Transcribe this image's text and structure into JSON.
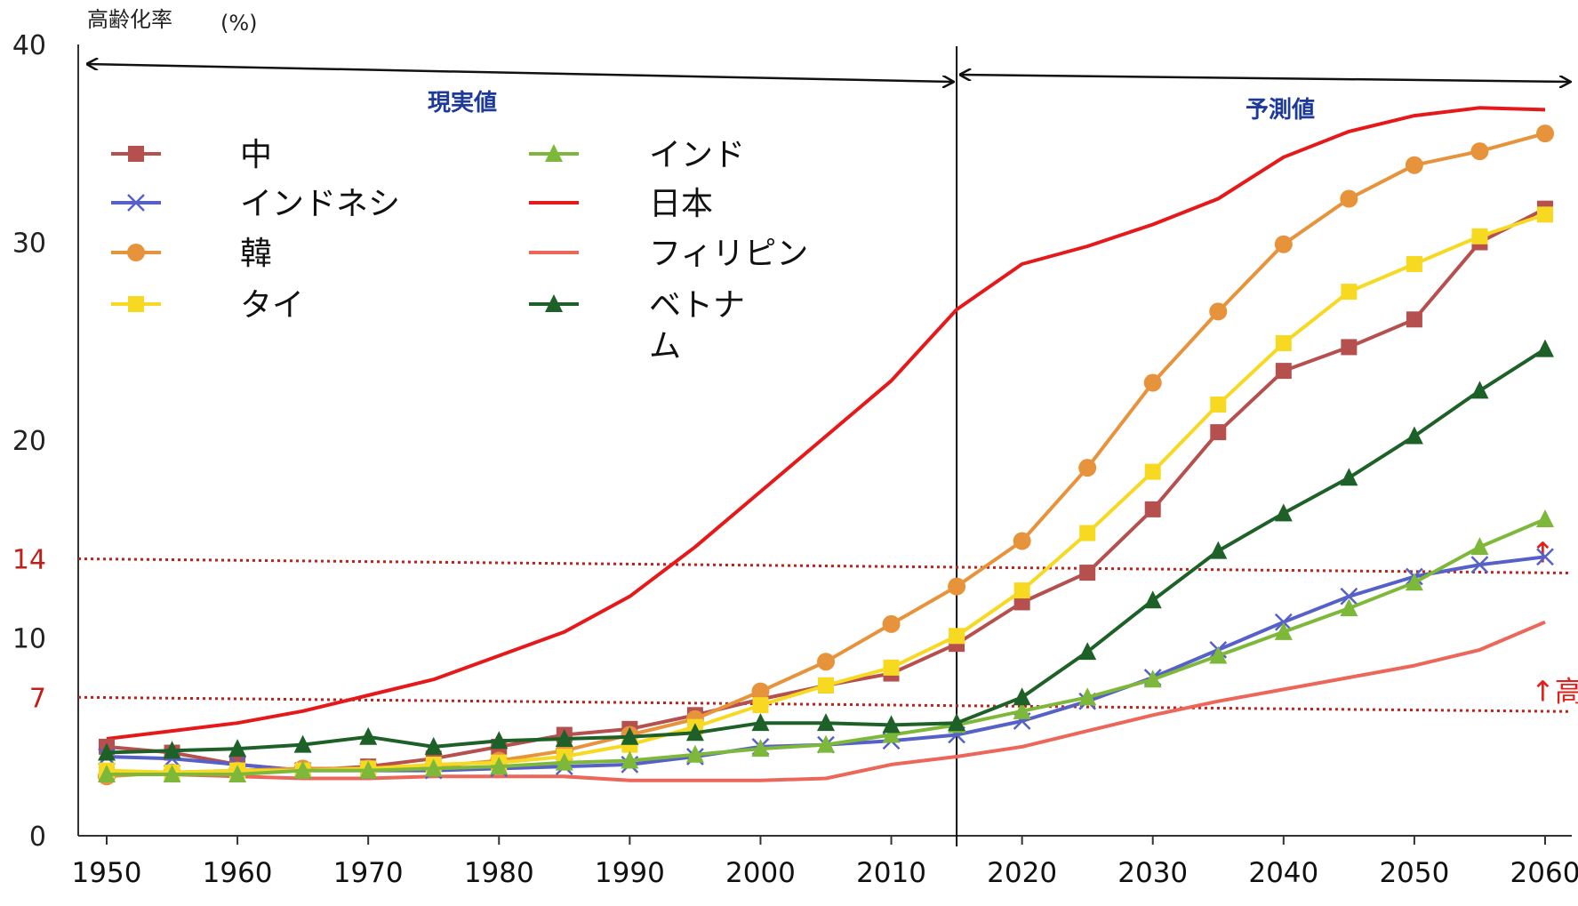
{
  "chart_data": {
    "type": "line",
    "ylabel": "高齢化率",
    "yunit": "(%)",
    "ylim": [
      0,
      40
    ],
    "xlim": [
      1950,
      2060
    ],
    "y_ticks": [
      "0",
      "10",
      "20",
      "30",
      "40"
    ],
    "x_ticks": [
      "1950",
      "1960",
      "1970",
      "1980",
      "1990",
      "2000",
      "2010",
      "2020",
      "2030",
      "2040",
      "2050",
      "2060"
    ],
    "ref_lines": [
      {
        "value": 14,
        "label": "14",
        "note": "↑"
      },
      {
        "value": 7,
        "label": "7",
        "note": "↑高"
      }
    ],
    "divider_year": 2015,
    "periods": {
      "actual": "現実値",
      "projected": "予測値"
    },
    "x": [
      1950,
      1955,
      1960,
      1965,
      1970,
      1975,
      1980,
      1985,
      1990,
      1995,
      2000,
      2005,
      2010,
      2015,
      2020,
      2025,
      2030,
      2035,
      2040,
      2045,
      2050,
      2055,
      2060
    ],
    "series": [
      {
        "name": "中",
        "color": "#b5504e",
        "marker": "square",
        "values": [
          4.5,
          4.2,
          3.6,
          3.3,
          3.5,
          3.9,
          4.5,
          5.1,
          5.4,
          6.1,
          6.9,
          7.6,
          8.2,
          9.7,
          11.8,
          13.3,
          16.5,
          20.4,
          23.5,
          24.7,
          26.1,
          30.0,
          31.7
        ]
      },
      {
        "name": "インドネシ",
        "color": "#5560c8",
        "marker": "cross",
        "values": [
          4.0,
          3.9,
          3.6,
          3.3,
          3.3,
          3.3,
          3.4,
          3.5,
          3.6,
          4.0,
          4.5,
          4.6,
          4.8,
          5.1,
          5.8,
          6.8,
          8.0,
          9.4,
          10.8,
          12.1,
          13.1,
          13.7,
          14.1
        ]
      },
      {
        "name": "韓",
        "color": "#e7933c",
        "marker": "circle",
        "values": [
          3.0,
          3.2,
          3.3,
          3.4,
          3.4,
          3.5,
          3.8,
          4.3,
          5.1,
          5.9,
          7.3,
          8.8,
          10.7,
          12.6,
          14.9,
          18.6,
          22.9,
          26.5,
          29.9,
          32.2,
          33.9,
          34.6,
          35.5
        ]
      },
      {
        "name": "タイ",
        "color": "#f7d921",
        "marker": "square",
        "values": [
          3.3,
          3.2,
          3.3,
          3.3,
          3.4,
          3.6,
          3.7,
          4.0,
          4.6,
          5.5,
          6.6,
          7.6,
          8.5,
          10.1,
          12.4,
          15.3,
          18.4,
          21.8,
          24.9,
          27.5,
          28.9,
          30.3,
          31.4
        ]
      },
      {
        "name": "インド",
        "color": "#7db83b",
        "marker": "triangle",
        "values": [
          3.1,
          3.1,
          3.1,
          3.3,
          3.3,
          3.4,
          3.5,
          3.7,
          3.8,
          4.1,
          4.4,
          4.6,
          5.1,
          5.6,
          6.3,
          7.0,
          7.9,
          9.1,
          10.3,
          11.5,
          12.8,
          14.6,
          16.0
        ]
      },
      {
        "name": "日本",
        "color": "#e6191a",
        "marker": "none",
        "values": [
          4.9,
          5.3,
          5.7,
          6.3,
          7.1,
          7.9,
          9.1,
          10.3,
          12.1,
          14.6,
          17.4,
          20.2,
          23.0,
          26.6,
          28.9,
          29.8,
          30.9,
          32.2,
          34.3,
          35.6,
          36.4,
          36.8,
          36.7
        ]
      },
      {
        "name": "フィリピン",
        "color": "#ec6659",
        "marker": "none",
        "values": [
          3.3,
          3.1,
          3.0,
          2.9,
          2.9,
          3.0,
          3.0,
          3.0,
          2.8,
          2.8,
          2.8,
          2.9,
          3.6,
          4.0,
          4.5,
          5.3,
          6.1,
          6.8,
          7.4,
          8.0,
          8.6,
          9.4,
          10.8
        ]
      },
      {
        "name": "ベトナム",
        "color": "#1e6128",
        "marker": "triangle",
        "values": [
          4.2,
          4.3,
          4.4,
          4.6,
          5.0,
          4.5,
          4.8,
          4.9,
          5.0,
          5.2,
          5.7,
          5.7,
          5.6,
          5.7,
          7.0,
          9.3,
          11.9,
          14.4,
          16.3,
          18.1,
          20.2,
          22.5,
          24.6
        ]
      }
    ]
  },
  "legend": {
    "items": [
      {
        "label": "中",
        "color": "#b5504e",
        "marker": "square"
      },
      {
        "label": "インドネシ",
        "color": "#5560c8",
        "marker": "cross"
      },
      {
        "label": "韓",
        "color": "#e7933c",
        "marker": "circle"
      },
      {
        "label": "タイ",
        "color": "#f7d921",
        "marker": "square"
      },
      {
        "label": "インド",
        "color": "#7db83b",
        "marker": "triangle"
      },
      {
        "label": "日本",
        "color": "#e6191a",
        "marker": "none"
      },
      {
        "label": "フィリピン",
        "color": "#ec6659",
        "marker": "none"
      },
      {
        "label": "ベトナ",
        "label_line2": "ム",
        "color": "#1e6128",
        "marker": "triangle"
      }
    ]
  },
  "colors": {
    "ref_line": "#c0201a",
    "period_label": "#1d3a9a",
    "axis": "#333333"
  }
}
